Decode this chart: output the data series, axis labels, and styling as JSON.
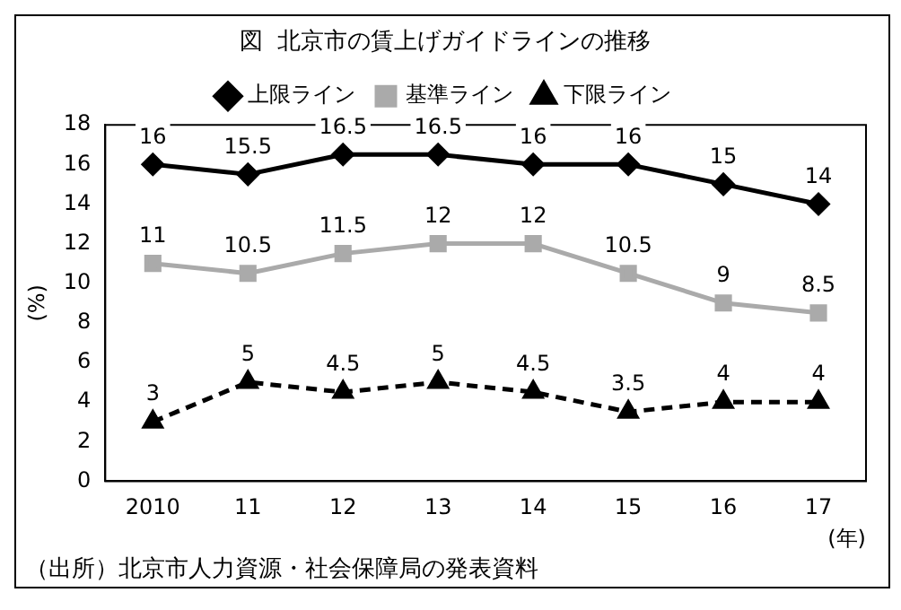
{
  "chart_data": {
    "type": "line",
    "title": "図  北京市の賃上げガイドラインの推移",
    "ylabel": "(%)",
    "xlabel": "(年)",
    "categories": [
      "2010",
      "11",
      "12",
      "13",
      "14",
      "15",
      "16",
      "17"
    ],
    "series": [
      {
        "name": "上限ライン",
        "color": "#000000",
        "marker": "diamond",
        "line_style": "solid",
        "values": [
          16,
          15.5,
          16.5,
          16.5,
          16,
          16,
          15,
          14
        ]
      },
      {
        "name": "基準ライン",
        "color": "#aaaaaa",
        "marker": "square",
        "line_style": "solid",
        "values": [
          11,
          10.5,
          11.5,
          12,
          12,
          10.5,
          9,
          8.5
        ]
      },
      {
        "name": "下限ライン",
        "color": "#000000",
        "marker": "triangle",
        "line_style": "dashed",
        "values": [
          3,
          5,
          4.5,
          5,
          4.5,
          3.5,
          4,
          4
        ]
      }
    ],
    "ylim": [
      0,
      18
    ],
    "yticks": [
      0,
      2,
      4,
      6,
      8,
      10,
      12,
      14,
      16,
      18
    ],
    "grid": false,
    "legend": "top",
    "data_labels": true,
    "annotations": [
      "（出所）北京市人力資源・社会保障局の発表資料"
    ]
  }
}
